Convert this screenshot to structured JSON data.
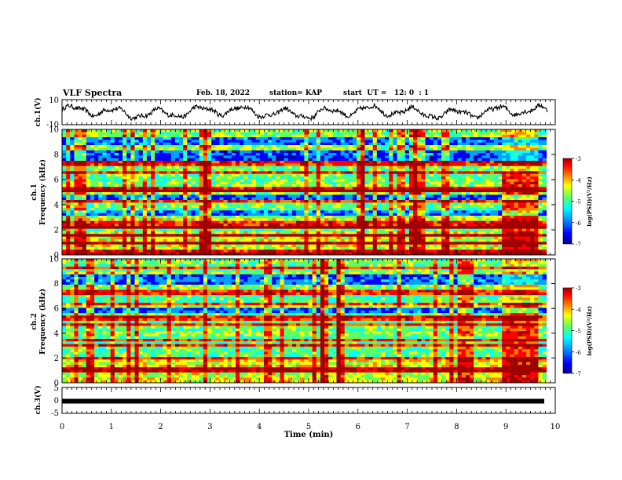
{
  "header": {
    "title": "VLF Spectra",
    "date": "Feb. 18, 2022",
    "station": "station= KAP",
    "start": "start  UT =   12: 0  : 1"
  },
  "chart_data": [
    {
      "type": "line",
      "ylabel": "ch.1(V)",
      "ylim": [
        -10,
        10
      ],
      "yticks": [
        "10",
        "-10"
      ],
      "xlim": [
        0,
        10
      ],
      "series": [
        {
          "values": []
        }
      ],
      "color": "#000000"
    },
    {
      "type": "heatmap",
      "ylabel_top": "ch.1",
      "ylabel": "Frequency (kHz)",
      "ylim": [
        0,
        10
      ],
      "yticks": [
        "0",
        "2",
        "4",
        "6",
        "8",
        "10"
      ],
      "xlim": [
        0,
        10
      ],
      "colorbar": {
        "label": "log(PSD)(V²/Hz)",
        "ticks": [
          "-3",
          "-4",
          "-5",
          "-6",
          "-7"
        ],
        "range": [
          -7,
          -3
        ]
      },
      "strong_bands_khz": [
        0.2,
        1.0,
        1.5,
        2.1,
        2.3,
        2.7,
        3.0,
        4.3,
        5.0,
        5.2,
        6.6,
        7.3
      ],
      "quiet_bands_khz": [
        [
          2.8,
          3.6
        ],
        [
          4.4,
          4.9
        ],
        [
          7.6,
          8.4
        ],
        [
          8.8,
          9.4
        ]
      ],
      "event_min": [
        8.95,
        9.65
      ]
    },
    {
      "type": "heatmap",
      "ylabel_top": "ch.2",
      "ylabel": "Frequency (kHz)",
      "ylim": [
        0,
        10
      ],
      "yticks": [
        "0",
        "2",
        "4",
        "6",
        "8",
        "10"
      ],
      "xlim": [
        0,
        10
      ],
      "colorbar": {
        "label": "log(PSD)(V²/Hz)",
        "ticks": [
          "-3",
          "-4",
          "-5",
          "-6",
          "-7"
        ],
        "range": [
          -7,
          -3
        ]
      },
      "strong_bands_khz": [
        1.0,
        1.1,
        2.0,
        3.1,
        3.4,
        4.7,
        5.2,
        6.3,
        7.3,
        9.3
      ],
      "quiet_bands_khz": [
        [
          5.6,
          6.0
        ],
        [
          8.0,
          8.8
        ]
      ],
      "event_min": [
        8.95,
        9.65
      ]
    },
    {
      "type": "line",
      "ylabel": "ch.3(V)",
      "ylim": [
        -5,
        5
      ],
      "yticks": [
        "5",
        "0",
        "-5"
      ],
      "xlabel": "Time (min)",
      "xlim": [
        0,
        10
      ],
      "xticks": [
        "0",
        "1",
        "2",
        "3",
        "4",
        "5",
        "6",
        "7",
        "8",
        "9",
        "10"
      ],
      "series": [
        {
          "values": [
            -0.3
          ]
        }
      ]
    }
  ],
  "colors": {
    "background": "#ffffff",
    "axis": "#000000",
    "colormap": [
      "#00008f",
      "#0000ff",
      "#00a0ff",
      "#00ffff",
      "#60ff60",
      "#ffff00",
      "#ff8000",
      "#ff0000",
      "#a00000"
    ]
  }
}
